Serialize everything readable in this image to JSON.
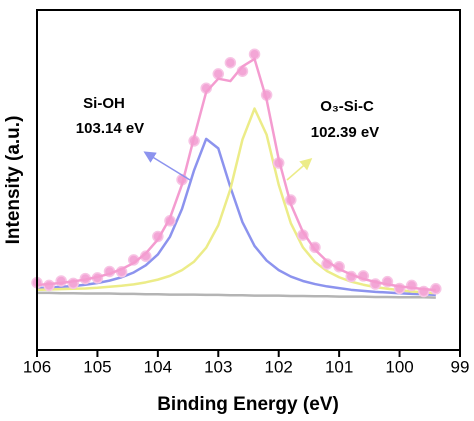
{
  "chart_data": {
    "type": "line",
    "x_label": "Binding Energy (eV)",
    "y_label": "Intensity (a.u.)",
    "annotations": [
      "Si-OH",
      "103.14 eV",
      "O₃-Si-C",
      "102.39 eV"
    ],
    "xlim": [
      106,
      99
    ],
    "xticks": [
      106,
      105,
      104,
      103,
      102,
      101,
      100,
      99
    ],
    "ylim": [
      0,
      100
    ],
    "x": [
      106,
      105.8,
      105.6,
      105.4,
      105.2,
      105,
      104.8,
      104.6,
      104.4,
      104.2,
      104,
      103.8,
      103.6,
      103.4,
      103.2,
      103,
      102.8,
      102.6,
      102.4,
      102.2,
      102,
      101.8,
      101.6,
      101.4,
      101.2,
      101,
      100.8,
      100.6,
      100.4,
      100.2,
      100,
      99.8,
      99.6,
      99.4
    ],
    "series": [
      {
        "mode": "line",
        "color": "#b4b4b4",
        "values": [
          16.8,
          16.8,
          16.7,
          16.7,
          16.6,
          16.6,
          16.6,
          16.5,
          16.5,
          16.4,
          16.4,
          16.3,
          16.3,
          16.3,
          16.2,
          16.2,
          16.1,
          16.1,
          16.0,
          16.0,
          16.0,
          15.9,
          15.9,
          15.8,
          15.8,
          15.7,
          15.7,
          15.7,
          15.6,
          15.6,
          15.5,
          15.5,
          15.5,
          15.4
        ]
      },
      {
        "mode": "line",
        "color": "#8c93ee",
        "values": [
          18.2,
          18.4,
          18.6,
          18.8,
          19.2,
          19.7,
          20.4,
          21.4,
          22.8,
          24.9,
          28.1,
          33.3,
          41.5,
          52.9,
          62.1,
          59.3,
          47.9,
          37.6,
          30.6,
          26.3,
          23.5,
          21.6,
          20.3,
          19.4,
          18.7,
          18.2,
          17.7,
          17.4,
          17.1,
          16.9,
          16.7,
          16.5,
          16.4,
          16.2
        ]
      },
      {
        "mode": "line",
        "color": "#ecec88",
        "values": [
          17.7,
          17.8,
          17.9,
          18.0,
          18.1,
          18.3,
          18.6,
          18.9,
          19.3,
          19.9,
          20.7,
          21.8,
          23.5,
          26.0,
          30.1,
          36.7,
          47.3,
          61.9,
          71.0,
          63.3,
          48.6,
          37.3,
          30.2,
          25.9,
          23.2,
          21.4,
          20.1,
          19.2,
          18.5,
          18.0,
          17.6,
          17.2,
          17.0,
          16.7
        ]
      },
      {
        "mode": "markers",
        "color": "#f3a6d6",
        "values": [
          19.8,
          19.0,
          20.3,
          19.6,
          21.0,
          21.2,
          23.1,
          23.0,
          26.5,
          27.6,
          33.4,
          38.0,
          50.1,
          61.5,
          77.0,
          81.2,
          84.5,
          82.0,
          87.0,
          75.0,
          55.0,
          44.1,
          33.8,
          30.2,
          25.3,
          24.5,
          21.6,
          21.8,
          19.4,
          20.1,
          18.1,
          19.0,
          17.2,
          18.0
        ]
      },
      {
        "mode": "line",
        "color": "#f49cd0",
        "values": [
          19.1,
          19.4,
          19.7,
          20.2,
          20.7,
          21.5,
          22.4,
          23.8,
          25.6,
          28.4,
          32.5,
          38.8,
          48.7,
          62.6,
          75.9,
          79.8,
          79.1,
          83.4,
          85.6,
          73.6,
          56.1,
          42.9,
          34.7,
          29.5,
          26.1,
          23.8,
          22.2,
          20.9,
          20.0,
          19.3,
          18.7,
          18.3,
          17.9,
          17.6
        ]
      }
    ]
  }
}
